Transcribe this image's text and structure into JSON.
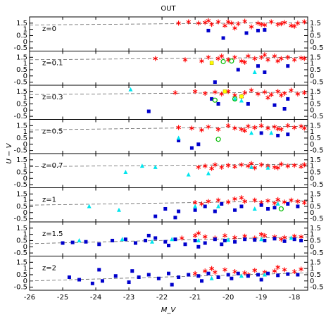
{
  "figure": {
    "title": "OUT",
    "x_label": "M_V",
    "y_label": "U − V",
    "xlim": [
      -26,
      -17.6
    ],
    "xticks": [
      -26,
      -25,
      -24,
      -23,
      -22,
      -21,
      -20,
      -19,
      -18
    ]
  },
  "chart_data": [
    {
      "type": "scatter",
      "label": "z=0",
      "ylim": [
        -0.75,
        2.0
      ],
      "yticks": [
        -0.5,
        0,
        0.5,
        1,
        1.5
      ],
      "fit": {
        "x": [
          -26,
          -17.6
        ],
        "y": [
          1.35,
          1.55
        ]
      },
      "series": [
        {
          "marker": "star",
          "color": "#ff0000",
          "x": [
            -21.5,
            -21.2,
            -20.9,
            -20.7,
            -20.6,
            -20.5,
            -20.3,
            -20.1,
            -20.0,
            -19.9,
            -19.8,
            -19.7,
            -19.5,
            -19.3,
            -19.1,
            -19.0,
            -18.9,
            -18.7,
            -18.5,
            -18.4,
            -18.3,
            -18.1,
            -18.0,
            -17.9,
            -17.7
          ],
          "y": [
            1.5,
            1.6,
            1.5,
            1.55,
            1.7,
            1.4,
            1.6,
            1.3,
            1.6,
            1.5,
            1.1,
            1.45,
            1.65,
            1.2,
            1.5,
            1.4,
            1.35,
            1.6,
            1.4,
            1.45,
            1.55,
            1.3,
            1.25,
            1.5,
            1.6
          ]
        },
        {
          "marker": "square",
          "color": "#0000cc",
          "x": [
            -20.6,
            -20.15,
            -19.45,
            -19.1,
            -18.9
          ],
          "y": [
            0.9,
            0.3,
            0.7,
            0.9,
            0.95
          ]
        }
      ]
    },
    {
      "type": "scatter",
      "label": "z=0.1",
      "ylim": [
        -0.75,
        2.0
      ],
      "yticks": [
        -0.5,
        0,
        0.5,
        1,
        1.5
      ],
      "fit": {
        "x": [
          -26,
          -17.6
        ],
        "y": [
          1.3,
          1.5
        ]
      },
      "series": [
        {
          "marker": "star",
          "color": "#ff0000",
          "x": [
            -22.2,
            -21.3,
            -20.8,
            -20.6,
            -20.3,
            -20.0,
            -19.8,
            -19.6,
            -19.4,
            -19.2,
            -19.0,
            -18.8,
            -18.6,
            -18.4,
            -18.2,
            -18.0,
            -17.8,
            -19.5,
            -18.9,
            -18.5,
            -17.7,
            -20.2
          ],
          "y": [
            1.4,
            1.3,
            1.2,
            1.5,
            1.4,
            1.3,
            1.5,
            1.2,
            1.6,
            1.4,
            1.5,
            1.3,
            1.6,
            1.4,
            1.5,
            1.3,
            1.45,
            1.1,
            1.7,
            1.2,
            1.4,
            1.6
          ]
        },
        {
          "marker": "square",
          "color": "#0000cc",
          "x": [
            -20.4,
            -19.7,
            -19.1,
            -18.9,
            -18.2
          ],
          "y": [
            -0.5,
            0.5,
            0.8,
            0.3,
            0.8
          ]
        },
        {
          "marker": "triangle",
          "color": "#00e5ee",
          "x": [
            -19.2
          ],
          "y": [
            0.3
          ]
        },
        {
          "marker": "square",
          "color": "#ffff00",
          "x": [
            -20.5
          ],
          "y": [
            1.05
          ]
        },
        {
          "marker": "circle",
          "color": "#00bb00",
          "x": [
            -19.9,
            -20.15
          ],
          "y": [
            1.2,
            1.15
          ]
        }
      ]
    },
    {
      "type": "scatter",
      "label": "z=0.3",
      "ylim": [
        -0.75,
        2.0
      ],
      "yticks": [
        -0.5,
        0,
        0.5,
        1,
        1.5
      ],
      "fit": {
        "x": [
          -26,
          -17.6
        ],
        "y": [
          1.25,
          1.45
        ]
      },
      "series": [
        {
          "marker": "star",
          "color": "#ff0000",
          "x": [
            -21.6,
            -21.0,
            -20.7,
            -20.4,
            -20.2,
            -20.0,
            -19.8,
            -19.5,
            -19.3,
            -19.1,
            -18.9,
            -18.7,
            -18.5,
            -18.3,
            -18.1,
            -17.9,
            -17.7,
            -19.6,
            -18.8,
            -18.4
          ],
          "y": [
            1.4,
            1.5,
            1.35,
            1.45,
            1.3,
            1.5,
            1.2,
            1.4,
            1.6,
            1.3,
            1.45,
            1.25,
            1.5,
            1.35,
            1.6,
            1.3,
            1.4,
            1.1,
            1.0,
            1.2
          ]
        },
        {
          "marker": "square",
          "color": "#0000cc",
          "x": [
            -22.4,
            -20.5,
            -20.3,
            -19.4,
            -18.6,
            -18.3,
            -18.2
          ],
          "y": [
            -0.1,
            0.9,
            0.5,
            0.5,
            0.4,
            0.1,
            0.9
          ]
        },
        {
          "marker": "triangle",
          "color": "#00e5ee",
          "x": [
            -22.95,
            -19.8,
            -19.6
          ],
          "y": [
            1.65,
            0.9,
            0.75
          ]
        },
        {
          "marker": "square",
          "color": "#ffff00",
          "x": [
            -20.1,
            -19.6
          ],
          "y": [
            1.5,
            1.1
          ]
        },
        {
          "marker": "circle",
          "color": "#00bb00",
          "x": [
            -20.4,
            -19.8
          ],
          "y": [
            0.8,
            0.9
          ]
        }
      ]
    },
    {
      "type": "scatter",
      "label": "z=0.5",
      "ylim": [
        -0.75,
        2.0
      ],
      "yticks": [
        -0.5,
        0,
        0.5,
        1,
        1.5
      ],
      "fit": {
        "x": [
          -26,
          -17.6
        ],
        "y": [
          1.15,
          1.45
        ]
      },
      "series": [
        {
          "marker": "star",
          "color": "#ff0000",
          "x": [
            -21.5,
            -21.1,
            -20.6,
            -20.3,
            -20.0,
            -19.8,
            -19.6,
            -19.4,
            -19.2,
            -19.0,
            -18.8,
            -18.6,
            -18.4,
            -18.2,
            -18.0,
            -17.8,
            -17.7,
            -20.8,
            -19.5,
            -18.5
          ],
          "y": [
            1.35,
            1.3,
            1.4,
            1.2,
            1.5,
            1.3,
            1.2,
            1.45,
            1.35,
            1.5,
            1.3,
            1.4,
            1.2,
            1.5,
            1.35,
            1.45,
            1.3,
            1.15,
            1.1,
            1.25
          ]
        },
        {
          "marker": "square",
          "color": "#0000cc",
          "x": [
            -21.5,
            -21.1,
            -20.9,
            -19.0,
            -18.5,
            -18.2
          ],
          "y": [
            0.3,
            -0.3,
            0,
            0.9,
            0.7,
            0.8
          ]
        },
        {
          "marker": "triangle",
          "color": "#00e5ee",
          "x": [
            -21.5,
            -19.3,
            -18.7
          ],
          "y": [
            0.5,
            0.9,
            0.9
          ]
        },
        {
          "marker": "circle",
          "color": "#00bb00",
          "x": [
            -20.3
          ],
          "y": [
            0.4
          ]
        }
      ]
    },
    {
      "type": "scatter",
      "label": "z=0.7",
      "ylim": [
        -0.75,
        2.0
      ],
      "yticks": [
        -0.5,
        0,
        0.5,
        1,
        1.5
      ],
      "fit": {
        "x": [
          -26,
          -17.6
        ],
        "y": [
          0.95,
          1.15
        ]
      },
      "series": [
        {
          "marker": "star",
          "color": "#ff0000",
          "x": [
            -20.9,
            -20.7,
            -20.4,
            -20.2,
            -20.0,
            -19.8,
            -19.6,
            -19.4,
            -19.2,
            -19.0,
            -18.8,
            -18.6,
            -18.4,
            -18.2,
            -18.0,
            -17.8,
            -17.7,
            -20.5,
            -19.3,
            -18.5
          ],
          "y": [
            0.9,
            1.0,
            1.1,
            0.9,
            1.05,
            0.95,
            1.1,
            1.0,
            0.85,
            1.1,
            1.0,
            0.9,
            1.15,
            1.0,
            1.05,
            0.95,
            1.1,
            0.8,
            1.2,
            0.85
          ]
        },
        {
          "marker": "triangle",
          "color": "#00e5ee",
          "x": [
            -23.1,
            -22.6,
            -22.2,
            -21.2,
            -20.6,
            -19.3,
            -18.8
          ],
          "y": [
            0.5,
            1.0,
            0.9,
            0.3,
            0.4,
            0.9,
            0.85
          ]
        }
      ]
    },
    {
      "type": "scatter",
      "label": "z=1",
      "ylim": [
        -0.75,
        2.0
      ],
      "yticks": [
        -0.5,
        0,
        0.5,
        1,
        1.5
      ],
      "fit": {
        "x": [
          -26,
          -17.6
        ],
        "y": [
          0.6,
          0.95
        ]
      },
      "series": [
        {
          "marker": "star",
          "color": "#ff0000",
          "x": [
            -21.0,
            -20.6,
            -20.3,
            -20.0,
            -19.8,
            -19.5,
            -19.2,
            -19.0,
            -18.8,
            -18.5,
            -18.3,
            -18.1,
            -17.9,
            -17.7,
            -20.8,
            -19.6,
            -18.6
          ],
          "y": [
            0.8,
            0.9,
            1.0,
            0.85,
            1.1,
            0.9,
            1.0,
            0.8,
            0.95,
            1.05,
            0.85,
            1.0,
            0.9,
            0.8,
            0.7,
            1.2,
            0.75
          ]
        },
        {
          "marker": "square",
          "color": "#0000cc",
          "x": [
            -22.2,
            -21.9,
            -21.6,
            -21.5,
            -21.0,
            -20.7,
            -20.2,
            -19.6,
            -19.0,
            -18.6,
            -18.2,
            -17.9,
            -20.4,
            -19.8,
            -18.8
          ],
          "y": [
            -0.3,
            0.3,
            -0.4,
            0.1,
            0.2,
            0.5,
            0.7,
            0.5,
            0.6,
            0.4,
            0.7,
            0.5,
            0.1,
            0.2,
            0.3
          ]
        },
        {
          "marker": "triangle",
          "color": "#00e5ee",
          "x": [
            -24.2,
            -23.3,
            -21.0,
            -20.3,
            -19.2,
            -18.5
          ],
          "y": [
            0.5,
            0.2,
            0.5,
            0.5,
            0.3,
            0.7
          ]
        },
        {
          "marker": "circle",
          "color": "#00bb00",
          "x": [
            -18.4
          ],
          "y": [
            0.3
          ]
        }
      ]
    },
    {
      "type": "scatter",
      "label": "z=1.5",
      "ylim": [
        -0.75,
        2.0
      ],
      "yticks": [
        -0.5,
        0,
        0.5,
        1,
        1.5
      ],
      "fit": {
        "x": [
          -26,
          -17.6
        ],
        "y": [
          0.25,
          0.8
        ]
      },
      "series": [
        {
          "marker": "star",
          "color": "#ff0000",
          "x": [
            -21.4,
            -21.0,
            -20.7,
            -20.4,
            -20.1,
            -19.8,
            -19.5,
            -19.2,
            -18.9,
            -18.6,
            -18.3,
            -18.0,
            -17.8,
            -20.9,
            -19.0,
            -18.4
          ],
          "y": [
            0.7,
            0.9,
            0.8,
            0.7,
            0.9,
            0.75,
            0.85,
            0.7,
            0.9,
            0.8,
            0.75,
            0.85,
            0.8,
            1.1,
            1.0,
            0.6
          ]
        },
        {
          "marker": "square",
          "color": "#0000cc",
          "x": [
            -25.0,
            -24.7,
            -24.3,
            -23.9,
            -23.5,
            -23.1,
            -22.8,
            -22.5,
            -22.2,
            -21.9,
            -21.6,
            -21.3,
            -21.0,
            -20.7,
            -20.4,
            -20.1,
            -19.8,
            -19.5,
            -19.2,
            -18.9,
            -18.6,
            -18.3,
            -18.0,
            -17.8,
            -22.4,
            -21.8,
            -20.9,
            -20.2
          ],
          "y": [
            0.3,
            0.35,
            0.4,
            0.2,
            0.5,
            0.6,
            0.3,
            0.5,
            0.7,
            0.4,
            0.6,
            0.2,
            0.5,
            0.3,
            0.6,
            0.5,
            0.4,
            0.6,
            0.55,
            0.5,
            0.65,
            0.45,
            0.6,
            0.5,
            0.9,
            0.1,
            0.0,
            0.2
          ]
        },
        {
          "marker": "triangle",
          "color": "#00e5ee",
          "x": [
            -24.5,
            -23.2,
            -22.3,
            -21.7,
            -20.9,
            -20.0,
            -19.0,
            -18.1
          ],
          "y": [
            0.5,
            0.6,
            0.4,
            0.6,
            0.5,
            0.55,
            0.6,
            0.7
          ]
        }
      ]
    },
    {
      "type": "scatter",
      "label": "z=2",
      "ylim": [
        -0.75,
        2.0
      ],
      "yticks": [
        -0.5,
        0,
        0.5,
        1,
        1.5
      ],
      "fit": {
        "x": [
          -26,
          -17.6
        ],
        "y": [
          0.0,
          0.65
        ]
      },
      "series": [
        {
          "marker": "star",
          "color": "#ff0000",
          "x": [
            -21.0,
            -20.7,
            -20.4,
            -20.1,
            -19.8,
            -19.5,
            -19.2,
            -18.9,
            -18.6,
            -18.3,
            -18.0,
            -17.8,
            -20.5,
            -19.4,
            -18.5
          ],
          "y": [
            0.6,
            0.8,
            0.7,
            0.9,
            0.75,
            0.65,
            0.85,
            0.7,
            0.8,
            0.9,
            0.75,
            0.95,
            1.0,
            0.5,
            1.1
          ]
        },
        {
          "marker": "square",
          "color": "#0000cc",
          "x": [
            -24.8,
            -24.5,
            -24.1,
            -23.8,
            -23.4,
            -23.0,
            -22.7,
            -22.4,
            -22.1,
            -21.8,
            -21.5,
            -21.2,
            -20.9,
            -20.6,
            -20.3,
            -20.0,
            -19.7,
            -19.4,
            -19.1,
            -18.8,
            -18.5,
            -18.2,
            -17.9,
            -23.9,
            -22.9,
            -21.7,
            -20.8,
            -19.9,
            -19.0
          ],
          "y": [
            0.3,
            0.1,
            -0.2,
            0.0,
            0.4,
            -0.1,
            0.3,
            0.5,
            0.2,
            0.6,
            0.3,
            0.5,
            0.4,
            0.6,
            0.3,
            0.5,
            0.6,
            0.4,
            0.5,
            0.6,
            0.45,
            0.55,
            0.5,
            0.9,
            0.8,
            -0.3,
            0.0,
            0.2,
            0.1
          ]
        },
        {
          "marker": "triangle",
          "color": "#00e5ee",
          "x": [
            -20.5,
            -19.6,
            -18.9
          ],
          "y": [
            0.2,
            0.4,
            0.5
          ]
        }
      ]
    }
  ]
}
